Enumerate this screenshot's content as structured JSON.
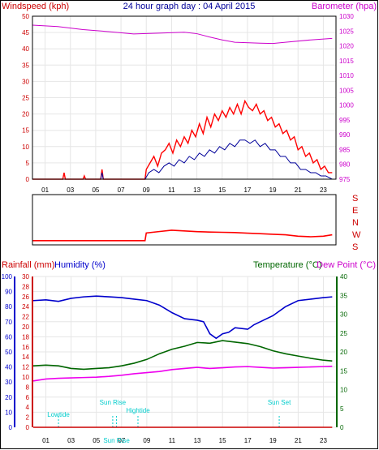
{
  "title": "24 hour graph day : 04 April 2015",
  "colors": {
    "wind": "#ff0000",
    "gust_avg": "#000099",
    "baro": "#cc00cc",
    "humidity": "#0000cc",
    "temperature": "#006600",
    "dew": "#ee00ee",
    "rain": "#cc0000",
    "marker": "#00cccc",
    "frame": "#000000"
  },
  "chart_data": [
    {
      "type": "line",
      "id": "wind_baro",
      "title": "24 hour graph day : 04 April 2015",
      "ylabel_left": "Windspeed (kph)",
      "ylabel_right": "Barometer (hpa)",
      "x_ticks": [
        "01",
        "03",
        "05",
        "07",
        "09",
        "11",
        "13",
        "15",
        "17",
        "19",
        "21",
        "23"
      ],
      "y_left_ticks": [
        "0",
        "5",
        "10",
        "15",
        "20",
        "25",
        "30",
        "35",
        "40",
        "45",
        "50"
      ],
      "y_right_ticks": [
        "975",
        "980",
        "985",
        "990",
        "995",
        "1000",
        "1005",
        "1010",
        "1015",
        "1020",
        "1025",
        "1030"
      ],
      "ylim_left": [
        0,
        50
      ],
      "ylim_right": [
        975,
        1030
      ],
      "xlim": [
        0,
        24
      ],
      "series": [
        {
          "name": "Windspeed (kph)",
          "axis": "left",
          "points": [
            [
              0,
              0
            ],
            [
              2.4,
              0
            ],
            [
              2.5,
              2
            ],
            [
              2.6,
              0
            ],
            [
              4,
              0
            ],
            [
              4.1,
              1
            ],
            [
              4.2,
              0
            ],
            [
              5.4,
              0
            ],
            [
              5.5,
              3
            ],
            [
              5.6,
              0
            ],
            [
              8.9,
              0
            ],
            [
              9.0,
              3
            ],
            [
              9.3,
              5
            ],
            [
              9.6,
              7
            ],
            [
              9.9,
              4
            ],
            [
              10.2,
              8
            ],
            [
              10.5,
              9
            ],
            [
              10.8,
              11
            ],
            [
              11.1,
              8
            ],
            [
              11.4,
              12
            ],
            [
              11.7,
              10
            ],
            [
              12.0,
              13
            ],
            [
              12.3,
              11
            ],
            [
              12.6,
              15
            ],
            [
              12.9,
              13
            ],
            [
              13.2,
              17
            ],
            [
              13.5,
              14
            ],
            [
              13.8,
              19
            ],
            [
              14.1,
              16
            ],
            [
              14.4,
              20
            ],
            [
              14.7,
              18
            ],
            [
              15.0,
              21
            ],
            [
              15.3,
              19
            ],
            [
              15.6,
              22
            ],
            [
              15.9,
              20
            ],
            [
              16.2,
              23
            ],
            [
              16.5,
              20
            ],
            [
              16.8,
              24
            ],
            [
              17.1,
              22
            ],
            [
              17.4,
              21
            ],
            [
              17.7,
              23
            ],
            [
              18.0,
              20
            ],
            [
              18.3,
              21
            ],
            [
              18.6,
              18
            ],
            [
              18.9,
              19
            ],
            [
              19.2,
              16
            ],
            [
              19.5,
              17
            ],
            [
              19.8,
              14
            ],
            [
              20.1,
              15
            ],
            [
              20.4,
              12
            ],
            [
              20.7,
              13
            ],
            [
              21.0,
              9
            ],
            [
              21.3,
              10
            ],
            [
              21.6,
              7
            ],
            [
              21.9,
              8
            ],
            [
              22.2,
              5
            ],
            [
              22.5,
              6
            ],
            [
              22.8,
              3
            ],
            [
              23.1,
              4
            ],
            [
              23.4,
              2
            ],
            [
              23.7,
              2
            ]
          ]
        },
        {
          "name": "Wind average",
          "axis": "left",
          "points": [
            [
              0,
              0
            ],
            [
              5.4,
              0
            ],
            [
              5.5,
              2
            ],
            [
              5.6,
              0
            ],
            [
              8.9,
              0
            ],
            [
              9.2,
              2
            ],
            [
              9.6,
              3
            ],
            [
              10.0,
              2
            ],
            [
              10.4,
              4
            ],
            [
              10.8,
              5
            ],
            [
              11.2,
              4
            ],
            [
              11.6,
              6
            ],
            [
              12.0,
              5
            ],
            [
              12.4,
              7
            ],
            [
              12.8,
              6
            ],
            [
              13.2,
              8
            ],
            [
              13.6,
              7
            ],
            [
              14.0,
              9
            ],
            [
              14.4,
              8
            ],
            [
              14.8,
              10
            ],
            [
              15.2,
              9
            ],
            [
              15.6,
              11
            ],
            [
              16.0,
              10
            ],
            [
              16.4,
              12
            ],
            [
              16.8,
              12
            ],
            [
              17.2,
              11
            ],
            [
              17.6,
              12
            ],
            [
              18.0,
              10
            ],
            [
              18.4,
              11
            ],
            [
              18.8,
              9
            ],
            [
              19.2,
              9
            ],
            [
              19.6,
              7
            ],
            [
              20.0,
              7
            ],
            [
              20.4,
              5
            ],
            [
              20.8,
              5
            ],
            [
              21.2,
              3
            ],
            [
              21.6,
              3
            ],
            [
              22.0,
              2
            ],
            [
              22.4,
              2
            ],
            [
              22.8,
              1
            ],
            [
              23.2,
              1
            ],
            [
              23.7,
              0
            ]
          ]
        },
        {
          "name": "Barometer (hpa)",
          "axis": "right",
          "points": [
            [
              0,
              1027
            ],
            [
              2,
              1026.5
            ],
            [
              4,
              1025.5
            ],
            [
              6,
              1024.8
            ],
            [
              8,
              1024
            ],
            [
              10,
              1024.3
            ],
            [
              12,
              1024.6
            ],
            [
              13,
              1024.1
            ],
            [
              14,
              1023
            ],
            [
              15,
              1022
            ],
            [
              16,
              1021.2
            ],
            [
              18,
              1020.9
            ],
            [
              19,
              1020.8
            ],
            [
              20,
              1021.2
            ],
            [
              22,
              1022
            ],
            [
              23.7,
              1022.5
            ]
          ]
        }
      ]
    },
    {
      "type": "line",
      "id": "wind_direction",
      "y_labels": [
        "S",
        "E",
        "N",
        "W",
        "S"
      ],
      "ylim": [
        0,
        360
      ],
      "xlim": [
        0,
        24
      ],
      "series": [
        {
          "name": "Wind direction",
          "points": [
            [
              0,
              30
            ],
            [
              8.9,
              30
            ],
            [
              9.0,
              85
            ],
            [
              10,
              95
            ],
            [
              11,
              105
            ],
            [
              12,
              100
            ],
            [
              13,
              95
            ],
            [
              14,
              92
            ],
            [
              15,
              90
            ],
            [
              16,
              88
            ],
            [
              17,
              84
            ],
            [
              18,
              80
            ],
            [
              19,
              76
            ],
            [
              20,
              72
            ],
            [
              21,
              62
            ],
            [
              22,
              58
            ],
            [
              23,
              62
            ],
            [
              23.7,
              72
            ]
          ]
        }
      ]
    },
    {
      "type": "line",
      "id": "temp_hum_rain",
      "ylabel_rain": "Rainfall (mm)",
      "ylabel_humidity": "Humidity (%)",
      "ylabel_temperature": "Temperature (°C)",
      "ylabel_dew": "Dew Point (°C)",
      "x_ticks": [
        "01",
        "03",
        "05",
        "07",
        "09",
        "11",
        "13",
        "15",
        "17",
        "19",
        "21",
        "23"
      ],
      "humidity_ticks": [
        "0",
        "10",
        "20",
        "30",
        "40",
        "50",
        "60",
        "70",
        "80",
        "90",
        "100"
      ],
      "rain_ticks": [
        "0",
        "2",
        "4",
        "6",
        "8",
        "10",
        "12",
        "14",
        "16",
        "18",
        "20",
        "22",
        "24",
        "26",
        "28",
        "30"
      ],
      "temp_ticks": [
        "0",
        "5",
        "10",
        "15",
        "20",
        "25",
        "30",
        "35",
        "40"
      ],
      "ylim_humidity": [
        0,
        100
      ],
      "ylim_rain": [
        0,
        30
      ],
      "ylim_temp": [
        0,
        40
      ],
      "xlim": [
        0,
        24
      ],
      "markers": [
        {
          "label": "Lowtide",
          "x": 2.0
        },
        {
          "label": "Sun Rise",
          "x": 6.3
        },
        {
          "label": "Sun Rise",
          "x": 6.6
        },
        {
          "label": "Hightide",
          "x": 8.3
        },
        {
          "label": "Sun Set",
          "x": 19.5
        }
      ],
      "series": [
        {
          "name": "Humidity (%)",
          "axis": "humidity",
          "points": [
            [
              0,
              84
            ],
            [
              1,
              84.5
            ],
            [
              2,
              83.5
            ],
            [
              3,
              85.5
            ],
            [
              4,
              86.5
            ],
            [
              5,
              87
            ],
            [
              6,
              86.5
            ],
            [
              7,
              86
            ],
            [
              8,
              85
            ],
            [
              9,
              84
            ],
            [
              10,
              81
            ],
            [
              11,
              76
            ],
            [
              12,
              72
            ],
            [
              13,
              71
            ],
            [
              13.5,
              70
            ],
            [
              14,
              62
            ],
            [
              14.5,
              59
            ],
            [
              15,
              62
            ],
            [
              15.5,
              63
            ],
            [
              16,
              66
            ],
            [
              17,
              65
            ],
            [
              17.5,
              68
            ],
            [
              18,
              70
            ],
            [
              19,
              74
            ],
            [
              20,
              80
            ],
            [
              21,
              84
            ],
            [
              22,
              85
            ],
            [
              23,
              86
            ],
            [
              23.7,
              86.5
            ]
          ]
        },
        {
          "name": "Temperature (°C)",
          "axis": "temp",
          "points": [
            [
              0,
              16.3
            ],
            [
              1,
              16.5
            ],
            [
              2,
              16.3
            ],
            [
              3,
              15.6
            ],
            [
              4,
              15.4
            ],
            [
              5,
              15.6
            ],
            [
              6,
              15.8
            ],
            [
              7,
              16.3
            ],
            [
              8,
              17
            ],
            [
              9,
              18
            ],
            [
              10,
              19.5
            ],
            [
              11,
              20.7
            ],
            [
              12,
              21.5
            ],
            [
              13,
              22.5
            ],
            [
              14,
              22.3
            ],
            [
              15,
              23
            ],
            [
              16,
              22.6
            ],
            [
              17,
              22.2
            ],
            [
              18,
              21.4
            ],
            [
              19,
              20.3
            ],
            [
              20,
              19.5
            ],
            [
              21,
              18.9
            ],
            [
              22,
              18.3
            ],
            [
              23,
              17.8
            ],
            [
              23.7,
              17.6
            ]
          ]
        },
        {
          "name": "Dew Point (°C)",
          "axis": "temp",
          "points": [
            [
              0,
              12.3
            ],
            [
              1,
              12.8
            ],
            [
              2,
              13
            ],
            [
              3,
              13.1
            ],
            [
              4,
              13.2
            ],
            [
              5,
              13.3
            ],
            [
              6,
              13.5
            ],
            [
              7,
              13.8
            ],
            [
              8,
              14.2
            ],
            [
              9,
              14.5
            ],
            [
              10,
              14.8
            ],
            [
              11,
              15.3
            ],
            [
              12,
              15.6
            ],
            [
              13,
              15.9
            ],
            [
              14,
              15.6
            ],
            [
              15,
              15.8
            ],
            [
              16,
              16
            ],
            [
              17,
              16.1
            ],
            [
              18,
              15.9
            ],
            [
              19,
              15.7
            ],
            [
              20,
              15.8
            ],
            [
              21,
              15.9
            ],
            [
              22,
              16
            ],
            [
              23,
              16.1
            ],
            [
              23.7,
              16.2
            ]
          ]
        },
        {
          "name": "Rainfall (mm)",
          "axis": "rain",
          "points": [
            [
              0,
              0
            ],
            [
              23.7,
              0
            ]
          ]
        }
      ]
    }
  ]
}
